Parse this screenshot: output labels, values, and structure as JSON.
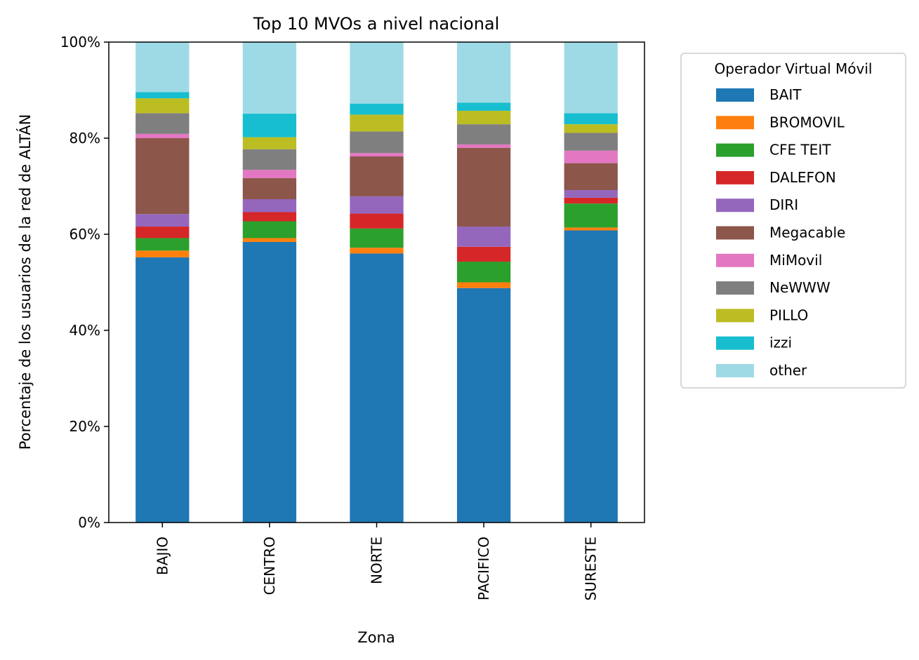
{
  "chart_data": {
    "type": "bar",
    "stacked": true,
    "title": "Top 10 MVOs a nivel nacional",
    "xlabel": "Zona",
    "ylabel": "Porcentaje de los usuarios de la red de ALTÁN",
    "ylim": [
      0,
      100
    ],
    "y_ticks": [
      "0%",
      "20%",
      "40%",
      "60%",
      "80%",
      "100%"
    ],
    "y_tick_values": [
      0,
      20,
      40,
      60,
      80,
      100
    ],
    "categories": [
      "BAJIO",
      "CENTRO",
      "NORTE",
      "PACIFICO",
      "SURESTE"
    ],
    "legend_title": "Operador Virtual Móvil",
    "legend_position": "outside-right",
    "series": [
      {
        "name": "BAIT",
        "color": "#1f77b4",
        "values": [
          55.2,
          58.4,
          56.0,
          48.8,
          60.8
        ]
      },
      {
        "name": "BROMOVIL",
        "color": "#ff7f0e",
        "values": [
          1.4,
          0.8,
          1.2,
          1.2,
          0.6
        ]
      },
      {
        "name": "CFE TEIT",
        "color": "#2ca02c",
        "values": [
          2.6,
          3.5,
          4.0,
          4.3,
          5.0
        ]
      },
      {
        "name": "DALEFON",
        "color": "#d62728",
        "values": [
          2.4,
          1.9,
          3.1,
          3.1,
          1.2
        ]
      },
      {
        "name": "DIRI",
        "color": "#9467bd",
        "values": [
          2.6,
          2.7,
          3.6,
          4.2,
          1.6
        ]
      },
      {
        "name": "Megacable",
        "color": "#8c564b",
        "values": [
          15.8,
          4.4,
          8.3,
          16.4,
          5.6
        ]
      },
      {
        "name": "MiMovil",
        "color": "#e377c2",
        "values": [
          0.9,
          1.7,
          0.7,
          0.7,
          2.6
        ]
      },
      {
        "name": "NeWWW",
        "color": "#7f7f7f",
        "values": [
          4.3,
          4.3,
          4.5,
          4.2,
          3.7
        ]
      },
      {
        "name": "PILLO",
        "color": "#bcbd22",
        "values": [
          3.1,
          2.5,
          3.5,
          2.8,
          1.8
        ]
      },
      {
        "name": "izzi",
        "color": "#17becf",
        "values": [
          1.3,
          4.9,
          2.3,
          1.7,
          2.3
        ]
      },
      {
        "name": "other",
        "color": "#9edae5",
        "values": [
          10.4,
          14.9,
          12.8,
          12.6,
          14.8
        ]
      }
    ]
  }
}
